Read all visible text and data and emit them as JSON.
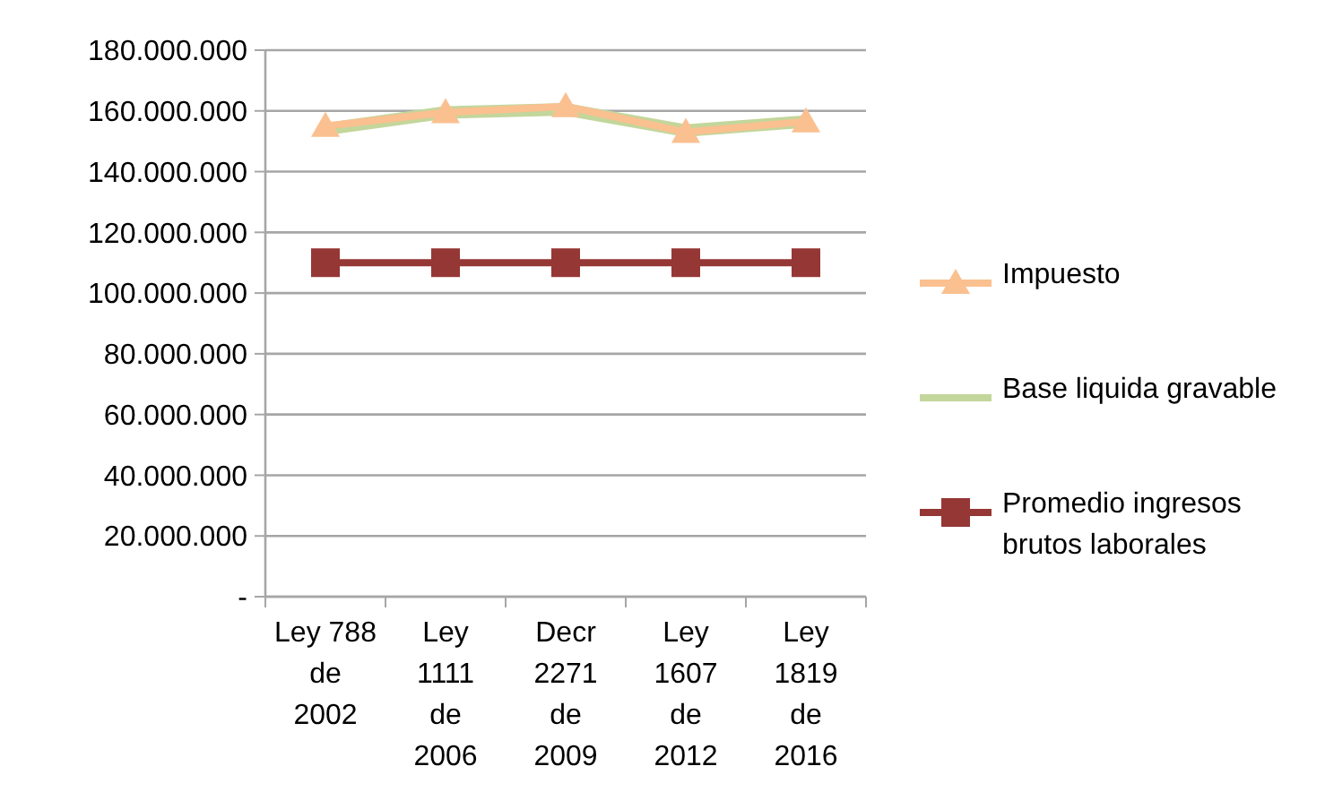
{
  "chart_data": {
    "type": "line",
    "categories": [
      "Ley 788\nde\n2002",
      "Ley\n1111\nde\n2006",
      "Decr\n2271\nde\n2009",
      "Ley\n1607\nde\n2012",
      "Ley\n1819\nde\n2016"
    ],
    "series": [
      {
        "name": "Impuesto",
        "color": "#fac090",
        "marker": "triangle",
        "values": [
          155000000,
          159500000,
          161500000,
          153000000,
          156500000
        ]
      },
      {
        "name": "Base liquida gravable",
        "color": "#c3d69b",
        "marker": "none",
        "values": [
          154000000,
          159500000,
          160500000,
          153500000,
          156500000
        ]
      },
      {
        "name": "Promedio ingresos\nbrutos laborales",
        "color": "#953735",
        "marker": "square",
        "values": [
          110000000,
          110000000,
          110000000,
          110000000,
          110000000
        ]
      }
    ],
    "ylim": [
      0,
      180000000
    ],
    "yticks": [
      {
        "value": 0,
        "label": "-"
      },
      {
        "value": 20000000,
        "label": "20.000.000"
      },
      {
        "value": 40000000,
        "label": "40.000.000"
      },
      {
        "value": 60000000,
        "label": "60.000.000"
      },
      {
        "value": 80000000,
        "label": "80.000.000"
      },
      {
        "value": 100000000,
        "label": "100.000.000"
      },
      {
        "value": 120000000,
        "label": "120.000.000"
      },
      {
        "value": 140000000,
        "label": "140.000.000"
      },
      {
        "value": 160000000,
        "label": "160.000.000"
      },
      {
        "value": 180000000,
        "label": "180.000.000"
      }
    ],
    "grid": "y",
    "legend": "right"
  }
}
